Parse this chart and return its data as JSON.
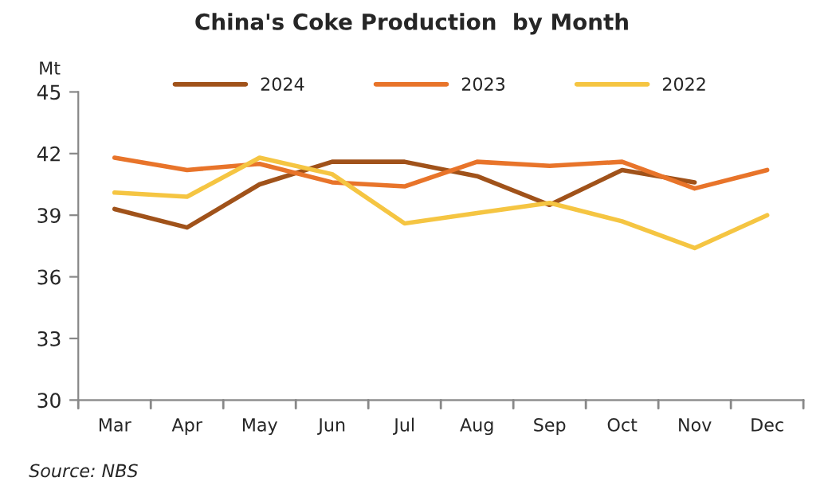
{
  "chart_data": {
    "type": "line",
    "title": "China's Coke Production  by Month",
    "ylabel": "Mt",
    "categories": [
      "Mar",
      "Apr",
      "May",
      "Jun",
      "Jul",
      "Aug",
      "Sep",
      "Oct",
      "Nov",
      "Dec"
    ],
    "series": [
      {
        "name": "2024",
        "color": "#a0521a",
        "values": [
          39.3,
          38.4,
          40.5,
          41.6,
          41.6,
          40.9,
          39.5,
          41.2,
          40.6,
          null
        ]
      },
      {
        "name": "2023",
        "color": "#e8742a",
        "values": [
          41.8,
          41.2,
          41.5,
          40.6,
          40.4,
          41.6,
          41.4,
          41.6,
          40.3,
          41.2
        ]
      },
      {
        "name": "2022",
        "color": "#f5c542",
        "values": [
          40.1,
          39.9,
          41.8,
          41.0,
          38.6,
          39.1,
          39.6,
          38.7,
          37.4,
          39.0
        ]
      }
    ],
    "ylim": [
      30,
      45
    ],
    "yticks": [
      30,
      33,
      36,
      39,
      42,
      45
    ],
    "grid": false,
    "legend": "top",
    "line_style": "solid",
    "marker": "none",
    "annotations": [
      "Source: NBS"
    ]
  }
}
